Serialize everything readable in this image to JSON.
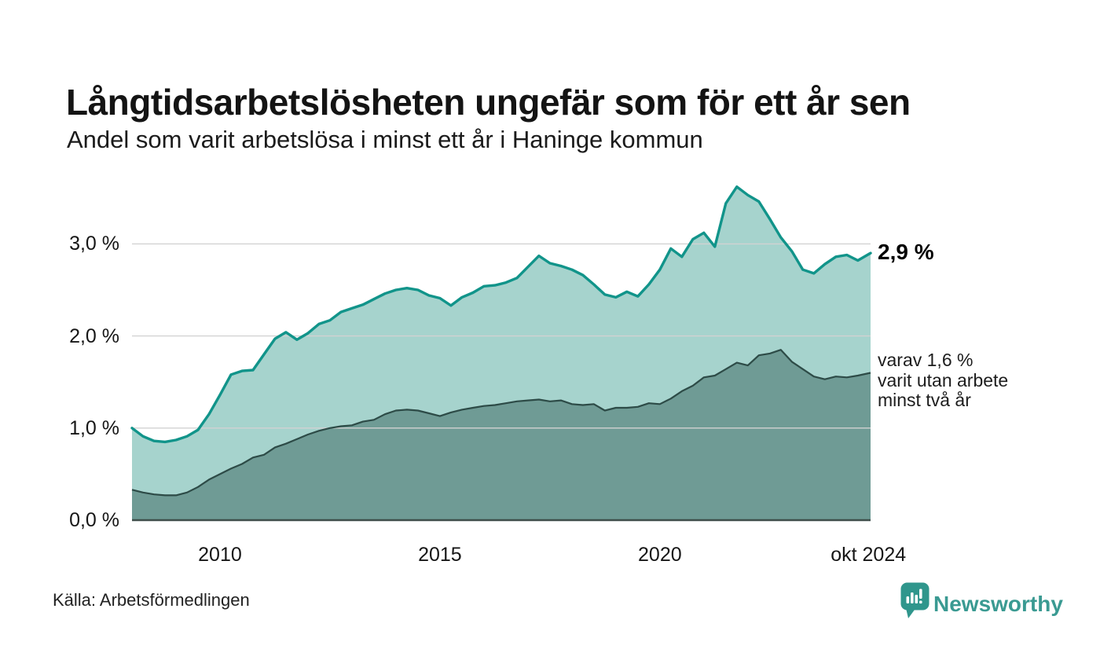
{
  "chart_data": {
    "type": "area",
    "title": "Långtidsarbetslösheten ungefär som för ett år sen",
    "subtitle": "Andel som varit arbetslösa i minst ett år i Haninge kommun",
    "xlim": [
      2008,
      2024.79
    ],
    "ylim": [
      0,
      3.7
    ],
    "grid": "horizontal",
    "legend_position": "none",
    "x": [
      2008,
      2008.25,
      2008.5,
      2008.75,
      2009,
      2009.25,
      2009.5,
      2009.75,
      2010,
      2010.25,
      2010.5,
      2010.75,
      2011,
      2011.25,
      2011.5,
      2011.75,
      2012,
      2012.25,
      2012.5,
      2012.75,
      2013,
      2013.25,
      2013.5,
      2013.75,
      2014,
      2014.25,
      2014.5,
      2014.75,
      2015,
      2015.25,
      2015.5,
      2015.75,
      2016,
      2016.25,
      2016.5,
      2016.75,
      2017,
      2017.25,
      2017.5,
      2017.75,
      2018,
      2018.25,
      2018.5,
      2018.75,
      2019,
      2019.25,
      2019.5,
      2019.75,
      2020,
      2020.25,
      2020.5,
      2020.75,
      2021,
      2021.25,
      2021.5,
      2021.75,
      2022,
      2022.25,
      2022.5,
      2022.75,
      2023,
      2023.25,
      2023.5,
      2023.75,
      2024,
      2024.25,
      2024.5,
      2024.79
    ],
    "series": [
      {
        "name": "Andel arbetslösa minst ett år",
        "unit": "%",
        "color": "#11948a",
        "fill": "#a6d3cd",
        "values": [
          1.0,
          0.91,
          0.86,
          0.85,
          0.87,
          0.91,
          0.98,
          1.15,
          1.36,
          1.58,
          1.62,
          1.63,
          1.8,
          1.97,
          2.04,
          1.96,
          2.03,
          2.13,
          2.17,
          2.26,
          2.3,
          2.34,
          2.4,
          2.46,
          2.5,
          2.52,
          2.5,
          2.44,
          2.41,
          2.33,
          2.42,
          2.47,
          2.54,
          2.55,
          2.58,
          2.63,
          2.75,
          2.87,
          2.79,
          2.76,
          2.72,
          2.66,
          2.56,
          2.45,
          2.42,
          2.48,
          2.43,
          2.56,
          2.72,
          2.95,
          2.86,
          3.05,
          3.12,
          2.97,
          3.44,
          3.62,
          3.53,
          3.46,
          3.27,
          3.07,
          2.92,
          2.72,
          2.68,
          2.78,
          2.86,
          2.88,
          2.82,
          2.9
        ]
      },
      {
        "name": "Andel utan arbete minst två år",
        "unit": "%",
        "color": "#2d4b47",
        "fill": "#6f9b95",
        "values": [
          0.33,
          0.3,
          0.28,
          0.27,
          0.27,
          0.3,
          0.36,
          0.44,
          0.5,
          0.56,
          0.61,
          0.68,
          0.71,
          0.79,
          0.83,
          0.88,
          0.93,
          0.97,
          1.0,
          1.02,
          1.03,
          1.07,
          1.09,
          1.15,
          1.19,
          1.2,
          1.19,
          1.16,
          1.13,
          1.17,
          1.2,
          1.22,
          1.24,
          1.25,
          1.27,
          1.29,
          1.3,
          1.31,
          1.29,
          1.3,
          1.26,
          1.25,
          1.26,
          1.19,
          1.22,
          1.22,
          1.23,
          1.27,
          1.26,
          1.32,
          1.4,
          1.46,
          1.55,
          1.57,
          1.64,
          1.71,
          1.68,
          1.79,
          1.81,
          1.85,
          1.72,
          1.64,
          1.56,
          1.53,
          1.56,
          1.55,
          1.57,
          1.6
        ]
      }
    ],
    "y_ticks": [
      {
        "value": 0,
        "label": "0,0 %"
      },
      {
        "value": 1,
        "label": "1,0 %"
      },
      {
        "value": 2,
        "label": "2,0 %"
      },
      {
        "value": 3,
        "label": "3,0 %"
      }
    ],
    "x_ticks": [
      {
        "year": 2010,
        "label": "2010"
      },
      {
        "year": 2015,
        "label": "2015"
      },
      {
        "year": 2020,
        "label": "2020"
      },
      {
        "year": 2024.74,
        "label": "okt 2024"
      }
    ],
    "annotations": {
      "end_value": "2,9 %",
      "secondary": [
        "varav 1,6 %",
        "varit utan arbete",
        "minst två år"
      ]
    }
  },
  "footer": {
    "source": "Källa: Arbetsförmedlingen",
    "brand": "Newsworthy"
  },
  "colors": {
    "accent_teal": "#11948a",
    "fill_light": "#a6d3cd",
    "fill_dark": "#6f9b95",
    "line_dark": "#2d4b47",
    "grid": "#d2d2d2",
    "axis": "#3f4e4b",
    "brand": "#33968c"
  }
}
